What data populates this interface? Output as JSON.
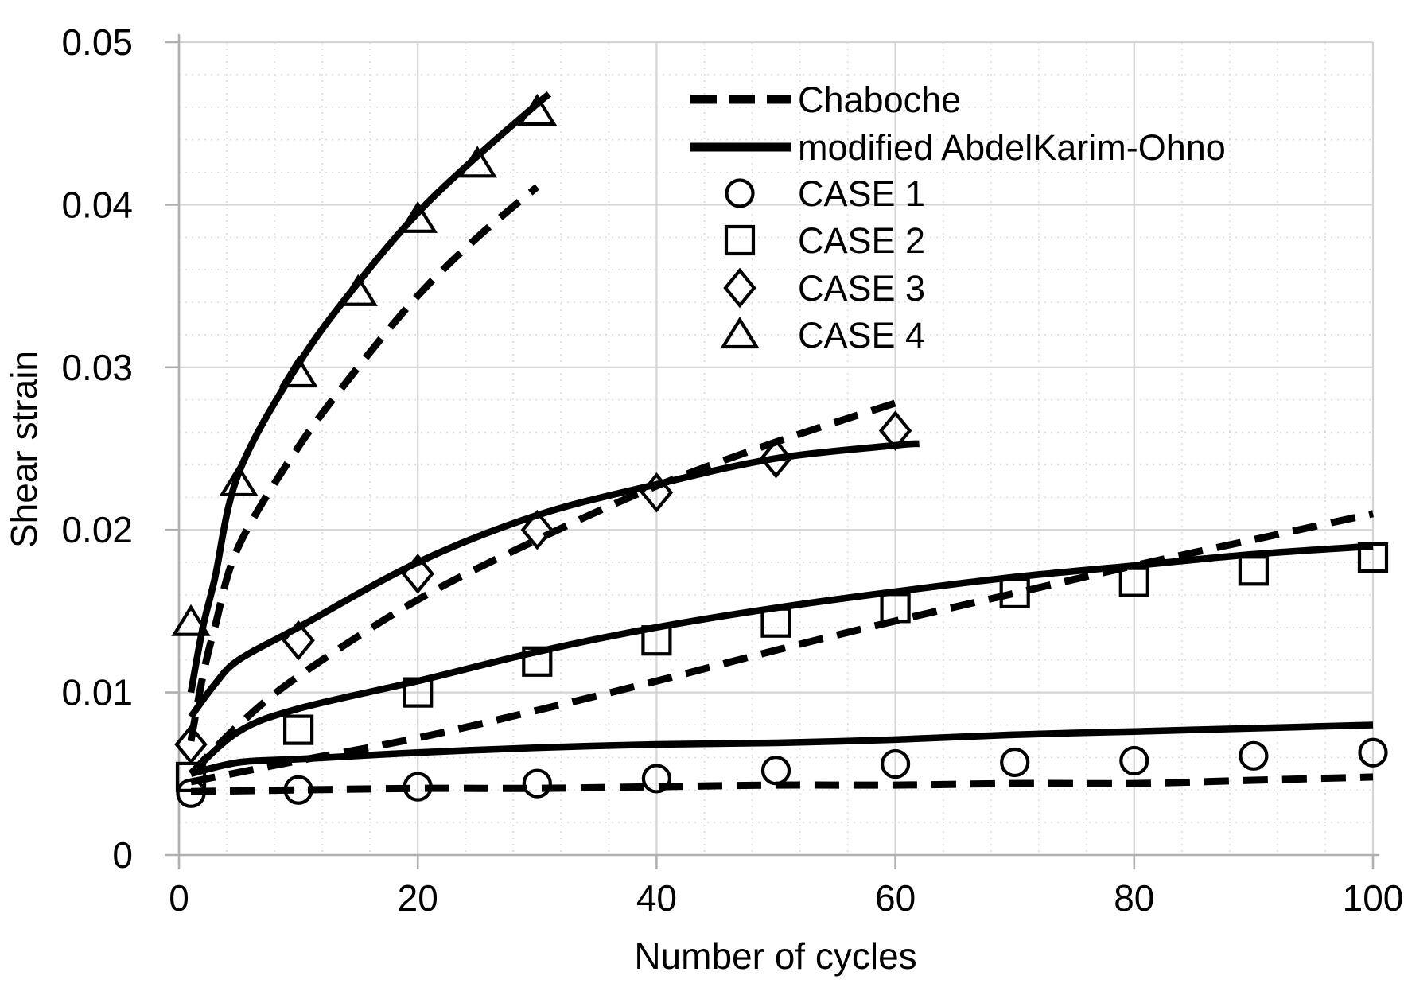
{
  "figure": {
    "background": "#ffffff",
    "line_color": "#000000",
    "grid_major_color": "#d4d4d4",
    "grid_minor_color": "#dddddd",
    "axis_color": "#b0b0b0"
  },
  "chart_data": {
    "type": "line",
    "title": "",
    "xlabel": "Number of cycles",
    "ylabel": "Shear strain",
    "xlim": [
      0,
      100
    ],
    "ylim": [
      0,
      0.05
    ],
    "x_ticks": [
      0,
      20,
      40,
      60,
      80,
      100
    ],
    "x_tick_labels": [
      "0",
      "20",
      "40",
      "60",
      "80",
      "100"
    ],
    "y_ticks": [
      0,
      0.01,
      0.02,
      0.03,
      0.04,
      0.05
    ],
    "y_tick_labels": [
      "0",
      "0.01",
      "0.02",
      "0.03",
      "0.04",
      "0.05"
    ],
    "x_minor_step": 4,
    "y_minor_step": 0.002,
    "grid": "on",
    "legend_position": "top-right-inside",
    "legend": [
      {
        "label": "Chaboche",
        "sample": "dashed"
      },
      {
        "label": "modified AbdelKarim-Ohno",
        "sample": "solid"
      },
      {
        "label": "CASE 1",
        "sample": "circle"
      },
      {
        "label": "CASE 2",
        "sample": "square"
      },
      {
        "label": "CASE 3",
        "sample": "diamond"
      },
      {
        "label": "CASE 4",
        "sample": "triangle"
      }
    ],
    "series": [
      {
        "name": "Chaboche - Case 1",
        "style": "dashed",
        "x": [
          1,
          10,
          20,
          30,
          40,
          50,
          60,
          70,
          80,
          90,
          100
        ],
        "y": [
          0.0039,
          0.004,
          0.0041,
          0.0041,
          0.0042,
          0.0043,
          0.0043,
          0.0044,
          0.0044,
          0.0046,
          0.0048
        ]
      },
      {
        "name": "Chaboche - Case 2",
        "style": "dashed",
        "x": [
          1,
          10,
          20,
          30,
          40,
          50,
          60,
          70,
          80,
          90,
          100
        ],
        "y": [
          0.0045,
          0.0058,
          0.0072,
          0.0089,
          0.0107,
          0.0126,
          0.0144,
          0.0161,
          0.0178,
          0.0194,
          0.021
        ]
      },
      {
        "name": "Chaboche - Case 3",
        "style": "dashed",
        "x": [
          1,
          5,
          10,
          20,
          30,
          40,
          50,
          60
        ],
        "y": [
          0.005,
          0.008,
          0.011,
          0.0157,
          0.0194,
          0.0227,
          0.0254,
          0.0278
        ]
      },
      {
        "name": "Chaboche - Case 4",
        "style": "dashed",
        "x": [
          1,
          2,
          3,
          5,
          10,
          15,
          20,
          25,
          30
        ],
        "y": [
          0.007,
          0.011,
          0.014,
          0.019,
          0.0251,
          0.03,
          0.0344,
          0.038,
          0.0411
        ]
      },
      {
        "name": "modified AbdelKarim-Ohno - Case 1",
        "style": "solid",
        "x": [
          1,
          5,
          10,
          20,
          30,
          40,
          50,
          60,
          70,
          80,
          90,
          100
        ],
        "y": [
          0.005,
          0.0057,
          0.0059,
          0.0063,
          0.0066,
          0.0068,
          0.0069,
          0.0071,
          0.0074,
          0.0076,
          0.0078,
          0.008
        ]
      },
      {
        "name": "modified AbdelKarim-Ohno - Case 2",
        "style": "solid",
        "x": [
          1,
          5,
          10,
          20,
          30,
          40,
          50,
          60,
          70,
          80,
          90,
          100
        ],
        "y": [
          0.005,
          0.0076,
          0.009,
          0.0107,
          0.0125,
          0.014,
          0.0152,
          0.0162,
          0.0171,
          0.0178,
          0.0185,
          0.019
        ]
      },
      {
        "name": "modified AbdelKarim-Ohno - Case 3",
        "style": "solid",
        "x": [
          1,
          3,
          5,
          10,
          20,
          30,
          40,
          50,
          60,
          62
        ],
        "y": [
          0.0085,
          0.0105,
          0.012,
          0.014,
          0.018,
          0.0209,
          0.0228,
          0.0244,
          0.0252,
          0.0253
        ]
      },
      {
        "name": "modified AbdelKarim-Ohno - Case 4",
        "style": "solid",
        "x": [
          1,
          2,
          3,
          5,
          10,
          15,
          20,
          25,
          30,
          31
        ],
        "y": [
          0.01,
          0.014,
          0.017,
          0.0235,
          0.0302,
          0.0352,
          0.0395,
          0.043,
          0.0462,
          0.0468
        ]
      },
      {
        "name": "CASE 1",
        "style": "marker",
        "marker": "circle",
        "x": [
          1,
          10,
          20,
          30,
          40,
          50,
          60,
          70,
          80,
          90,
          100
        ],
        "y": [
          0.0038,
          0.004,
          0.0042,
          0.0044,
          0.0047,
          0.0052,
          0.0056,
          0.0057,
          0.0058,
          0.0061,
          0.0063
        ]
      },
      {
        "name": "CASE 2",
        "style": "marker",
        "marker": "square",
        "x": [
          1,
          10,
          20,
          30,
          40,
          50,
          60,
          70,
          80,
          90,
          100
        ],
        "y": [
          0.0048,
          0.0077,
          0.01,
          0.0119,
          0.0132,
          0.0143,
          0.0152,
          0.0161,
          0.0168,
          0.0175,
          0.0183
        ]
      },
      {
        "name": "CASE 3",
        "style": "marker",
        "marker": "diamond",
        "x": [
          1,
          10,
          20,
          30,
          40,
          50,
          60
        ],
        "y": [
          0.0068,
          0.0132,
          0.0173,
          0.02,
          0.0223,
          0.0244,
          0.0261
        ]
      },
      {
        "name": "CASE 4",
        "style": "marker",
        "marker": "triangle",
        "x": [
          1,
          5,
          10,
          15,
          20,
          25,
          30
        ],
        "y": [
          0.0143,
          0.0229,
          0.0296,
          0.0346,
          0.0391,
          0.0425,
          0.0457
        ]
      }
    ]
  }
}
